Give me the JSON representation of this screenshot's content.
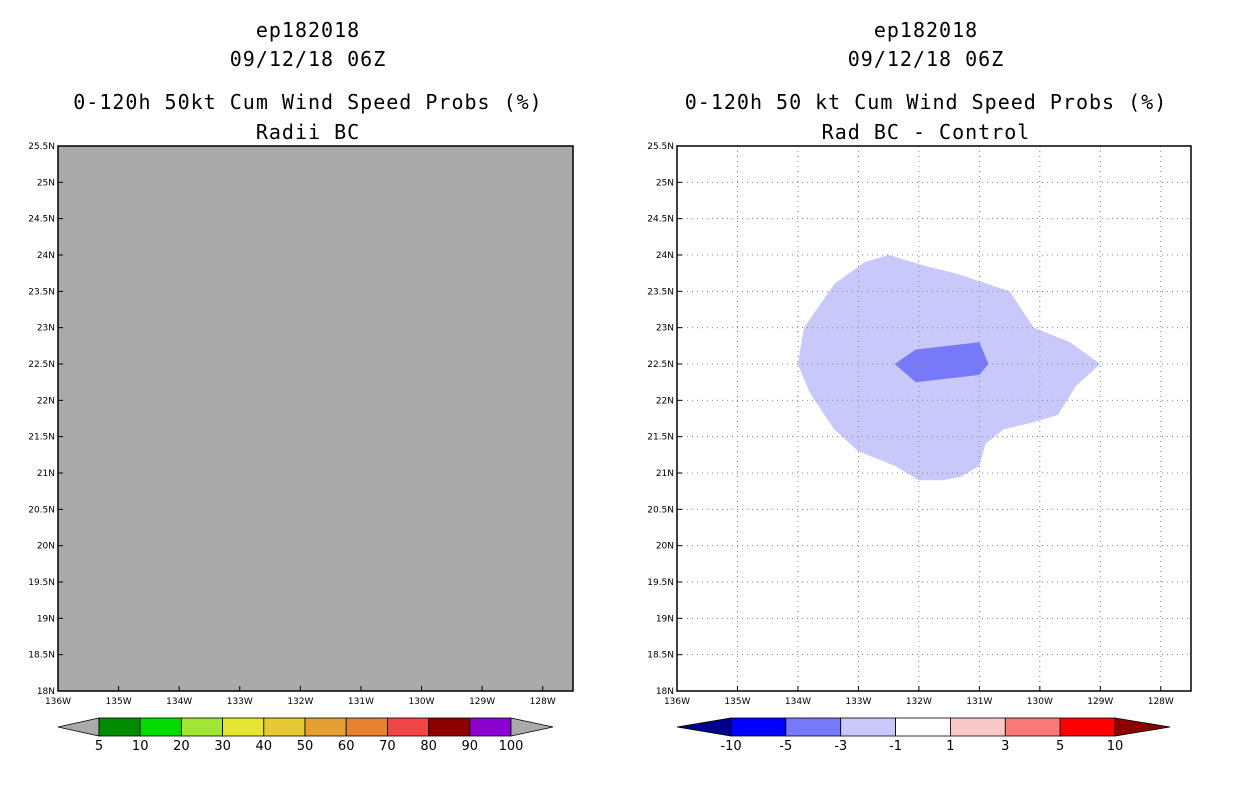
{
  "chart_data": [
    {
      "type": "heatmap",
      "storm_id": "ep182018",
      "datetime": "09/12/18 06Z",
      "title": "0-120h 50kt Cum Wind Speed Probs (%)",
      "subtitle": "Radii BC",
      "xlim": [
        -136,
        -127.5
      ],
      "ylim": [
        18,
        25.5
      ],
      "x_ticks": [
        "136W",
        "135W",
        "134W",
        "133W",
        "132W",
        "131W",
        "130W",
        "129W",
        "128W"
      ],
      "y_ticks": [
        "18N",
        "18.5N",
        "19N",
        "19.5N",
        "20N",
        "20.5N",
        "21N",
        "21.5N",
        "22N",
        "22.5N",
        "23N",
        "23.5N",
        "24N",
        "24.5N",
        "25N",
        "25.5N"
      ],
      "field": "no data (uniform gray fill)",
      "fill_color": "#aaaaaa",
      "grid": false,
      "colorbar": {
        "labels": [
          "5",
          "10",
          "20",
          "30",
          "40",
          "50",
          "60",
          "70",
          "80",
          "90",
          "100"
        ],
        "colors": [
          "#aaaaaa",
          "#008c00",
          "#00dc00",
          "#a0e632",
          "#e6e632",
          "#e6c832",
          "#e6a032",
          "#e68232",
          "#f04646",
          "#8c0000",
          "#8c00d2",
          "#aaaaaa"
        ]
      }
    },
    {
      "type": "heatmap",
      "storm_id": "ep182018",
      "datetime": "09/12/18 06Z",
      "title": "0-120h 50 kt Cum Wind Speed Probs (%)",
      "subtitle": "Rad BC - Control",
      "xlim": [
        -136,
        -127.5
      ],
      "ylim": [
        18,
        25.5
      ],
      "x_ticks": [
        "136W",
        "135W",
        "134W",
        "133W",
        "132W",
        "131W",
        "130W",
        "129W",
        "128W"
      ],
      "y_ticks": [
        "18N",
        "18.5N",
        "19N",
        "19.5N",
        "20N",
        "20.5N",
        "21N",
        "21.5N",
        "22N",
        "22.5N",
        "23N",
        "23.5N",
        "24N",
        "24.5N",
        "25N",
        "25.5N"
      ],
      "grid": true,
      "regions": [
        {
          "name": "difference -3 to -1",
          "color": "#c8c8fa",
          "points": [
            [
              -134,
              22.5
            ],
            [
              -133.9,
              23
            ],
            [
              -133.4,
              23.6
            ],
            [
              -132.9,
              23.9
            ],
            [
              -132.5,
              24
            ],
            [
              -131.9,
              23.85
            ],
            [
              -131.4,
              23.75
            ],
            [
              -130.5,
              23.5
            ],
            [
              -130.1,
              23
            ],
            [
              -129.5,
              22.8
            ],
            [
              -129,
              22.5
            ],
            [
              -129.4,
              22.2
            ],
            [
              -129.7,
              21.8
            ],
            [
              -130.1,
              21.7
            ],
            [
              -130.6,
              21.6
            ],
            [
              -130.9,
              21.4
            ],
            [
              -131,
              21.1
            ],
            [
              -131.3,
              20.95
            ],
            [
              -131.6,
              20.9
            ],
            [
              -132,
              20.9
            ],
            [
              -132.4,
              21.1
            ],
            [
              -133,
              21.3
            ],
            [
              -133.4,
              21.6
            ],
            [
              -133.8,
              22.1
            ]
          ]
        },
        {
          "name": "difference -5 to -3",
          "color": "#7878fa",
          "points": [
            [
              -132.4,
              22.5
            ],
            [
              -132.05,
              22.7
            ],
            [
              -131,
              22.8
            ],
            [
              -130.85,
              22.5
            ],
            [
              -131,
              22.35
            ],
            [
              -132.05,
              22.25
            ]
          ]
        }
      ],
      "colorbar": {
        "labels": [
          "-10",
          "-5",
          "-3",
          "-1",
          "1",
          "3",
          "5",
          "10"
        ],
        "colors": [
          "#00008c",
          "#0000ff",
          "#7878fa",
          "#c8c8fa",
          "#ffffff",
          "#fac8c8",
          "#fa7878",
          "#ff0000",
          "#8c0000"
        ]
      }
    }
  ]
}
